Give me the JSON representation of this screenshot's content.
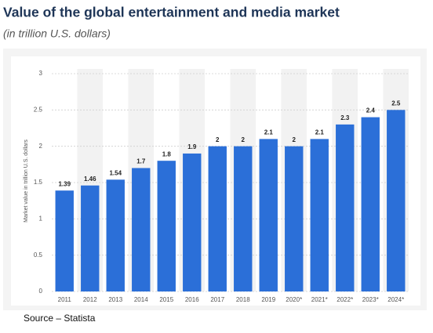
{
  "chart_data": {
    "type": "bar",
    "title": "Value of the global entertainment and media market",
    "subtitle": "(in trillion U.S. dollars)",
    "y_label": "Market value in trillion U.S. dollars",
    "source": "Source – Statista",
    "categories": [
      "2011",
      "2012",
      "2013",
      "2014",
      "2015",
      "2016",
      "2017",
      "2018",
      "2019",
      "2020*",
      "2021*",
      "2022*",
      "2023*",
      "2024*"
    ],
    "values": [
      1.39,
      1.46,
      1.54,
      1.7,
      1.8,
      1.9,
      2,
      2,
      2.1,
      2,
      2.1,
      2.3,
      2.4,
      2.5
    ],
    "color": "#2b6fd8",
    "ylim": [
      0,
      3
    ],
    "yticks": [
      0,
      0.5,
      1,
      1.5,
      2,
      2.5,
      3
    ],
    "grid": true
  }
}
